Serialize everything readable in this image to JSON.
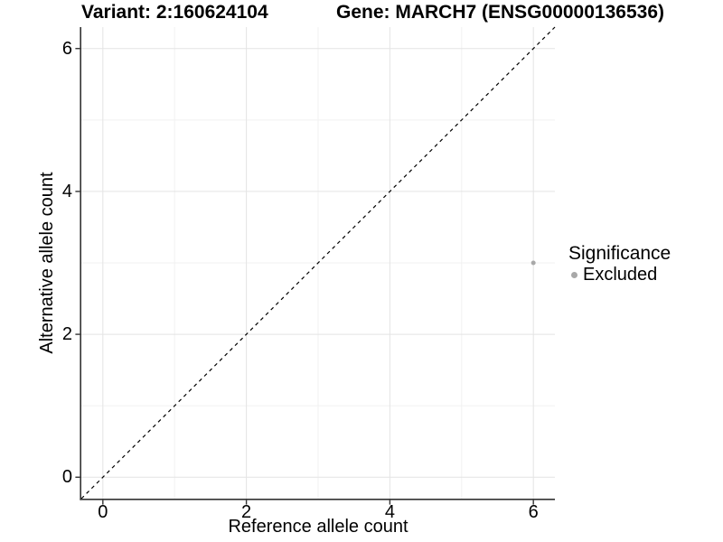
{
  "header": {
    "variant_title": "Variant: 2:160624104",
    "gene_title": "Gene: MARCH7 (ENSG00000136536)"
  },
  "chart_data": {
    "type": "scatter",
    "xlabel": "Reference allele count",
    "ylabel": "Alternative allele count",
    "xlim": [
      -0.3,
      6.3
    ],
    "ylim": [
      -0.3,
      6.3
    ],
    "xticks": [
      0,
      2,
      4,
      6
    ],
    "yticks": [
      0,
      2,
      4,
      6
    ],
    "x_minor_ticks": [
      1,
      3,
      5
    ],
    "y_minor_ticks": [
      1,
      3,
      5
    ],
    "grid": "major-and-minor",
    "reference_line": {
      "type": "identity",
      "style": "dashed",
      "from": [
        -0.3,
        -0.3
      ],
      "to": [
        6.3,
        6.3
      ],
      "color": "#000000"
    },
    "series": [
      {
        "name": "Excluded",
        "color": "#a8a8a8",
        "points": [
          {
            "x": 6,
            "y": 3
          }
        ]
      }
    ],
    "legend": {
      "title": "Significance",
      "position": "right",
      "items": [
        {
          "label": "Excluded",
          "color": "#a8a8a8"
        }
      ]
    }
  },
  "colors": {
    "background": "#ffffff",
    "grid_major": "#e4e4e4",
    "grid_minor": "#f1f1f1",
    "axis_line": "#333333",
    "tick_mark": "#333333",
    "text": "#000000",
    "point": "#a8a8a8"
  }
}
